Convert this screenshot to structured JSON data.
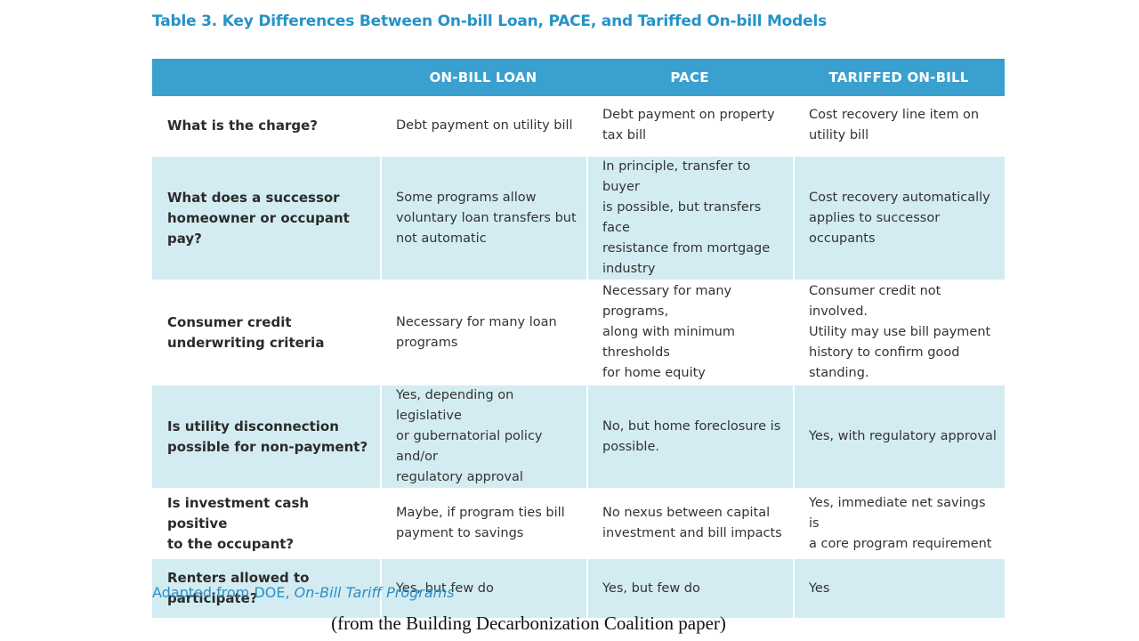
{
  "title": "Table 3. Key Differences Between On-bill Loan, PACE, and Tariffed On-bill Models",
  "table": {
    "headers": [
      "",
      "ON-BILL LOAN",
      "PACE",
      "TARIFFED ON-BILL"
    ],
    "rows": [
      {
        "question": "What is the charge?",
        "on_bill_loan": "Debt payment on utility bill",
        "pace": "Debt payment on property\ntax bill",
        "tariffed": "Cost recovery line item on\nutility bill"
      },
      {
        "question": "What does a successor\nhomeowner or occupant pay?",
        "on_bill_loan": "Some programs allow\nvoluntary loan transfers but\nnot automatic",
        "pace": "In principle, transfer to buyer\nis possible, but transfers face\nresistance from mortgage\nindustry",
        "tariffed": "Cost recovery automatically\napplies to successor occupants"
      },
      {
        "question": "Consumer credit\nunderwriting criteria",
        "on_bill_loan": "Necessary for many loan\nprograms",
        "pace": "Necessary for many programs,\nalong with minimum\nthresholds\nfor home equity",
        "tariffed": "Consumer credit not involved.\nUtility may use bill payment\nhistory to confirm good\nstanding."
      },
      {
        "question": "Is utility disconnection\npossible for non-payment?",
        "on_bill_loan": "Yes, depending on legislative\nor gubernatorial policy and/or\nregulatory approval",
        "pace": "No, but home foreclosure is\npossible.",
        "tariffed": "Yes, with regulatory approval"
      },
      {
        "question": "Is investment cash positive\nto the occupant?",
        "on_bill_loan": "Maybe, if program ties bill\npayment to savings",
        "pace": "No nexus between capital\ninvestment and bill impacts",
        "tariffed": "Yes, immediate net savings is\na core program requirement"
      },
      {
        "question": "Renters allowed to\nparticipate?",
        "on_bill_loan": "Yes, but few do",
        "pace": "Yes, but few do",
        "tariffed": "Yes"
      }
    ]
  },
  "source": {
    "prefix": "Adapted from DOE, ",
    "italic": "On-Bill Tariff Programs"
  },
  "caption": "(from the Building Decarbonization Coalition paper)",
  "colors": {
    "title": "#2593c7",
    "header_bg": "#3aa0cf",
    "alt_row_bg": "#d3ecf2",
    "source": "#2f8ec4"
  }
}
